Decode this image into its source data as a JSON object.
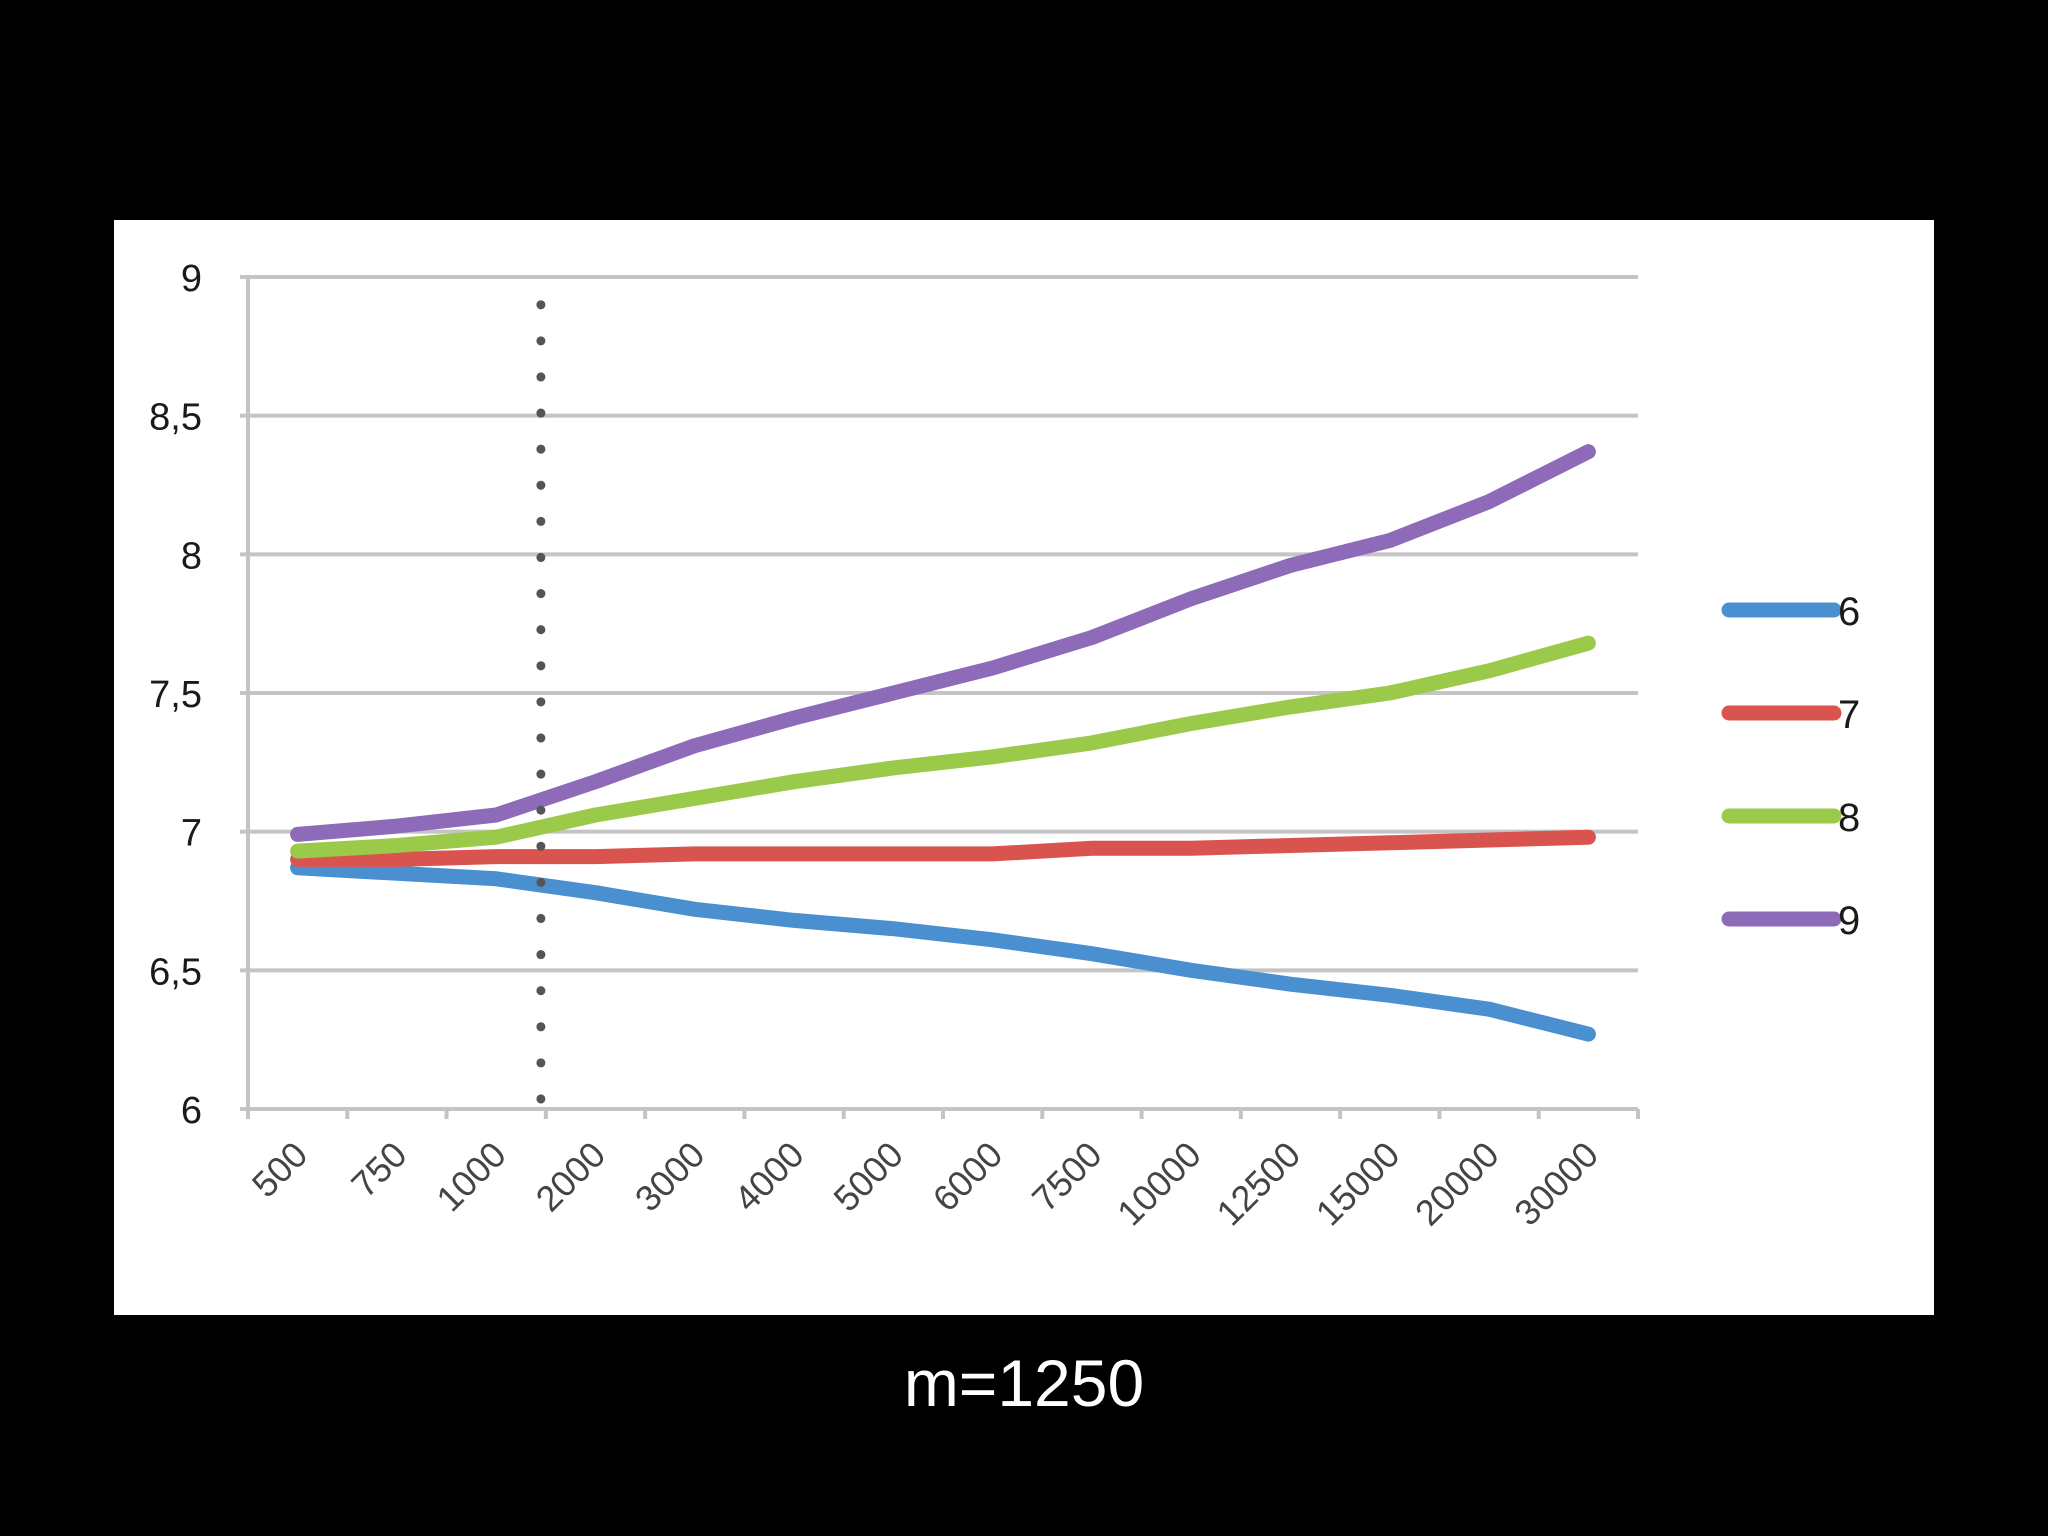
{
  "caption": "m=1250",
  "chart_data": {
    "type": "line",
    "title": "",
    "xlabel": "",
    "ylabel": "",
    "categories": [
      "500",
      "750",
      "1000",
      "2000",
      "3000",
      "4000",
      "5000",
      "6000",
      "7500",
      "10000",
      "12500",
      "15000",
      "20000",
      "30000"
    ],
    "ylim": [
      6,
      9
    ],
    "yticks": [
      "6",
      "6,5",
      "7",
      "7,5",
      "8",
      "8,5",
      "9"
    ],
    "grid": true,
    "legend_position": "right",
    "marker_line_category": "1000",
    "series": [
      {
        "name": "6",
        "color": "#4a90d0",
        "values": [
          6.87,
          6.85,
          6.83,
          6.78,
          6.72,
          6.68,
          6.65,
          6.61,
          6.56,
          6.5,
          6.45,
          6.41,
          6.36,
          6.27
        ]
      },
      {
        "name": "7",
        "color": "#d9534f",
        "values": [
          6.9,
          6.9,
          6.91,
          6.91,
          6.92,
          6.92,
          6.92,
          6.92,
          6.94,
          6.94,
          6.95,
          6.96,
          6.97,
          6.98
        ]
      },
      {
        "name": "8",
        "color": "#9bc94a",
        "values": [
          6.93,
          6.95,
          6.98,
          7.06,
          7.12,
          7.18,
          7.23,
          7.27,
          7.32,
          7.39,
          7.45,
          7.5,
          7.58,
          7.68
        ]
      },
      {
        "name": "9",
        "color": "#8e6bb8",
        "values": [
          6.99,
          7.02,
          7.06,
          7.18,
          7.31,
          7.41,
          7.5,
          7.59,
          7.7,
          7.84,
          7.96,
          8.05,
          8.19,
          8.37
        ]
      }
    ]
  }
}
